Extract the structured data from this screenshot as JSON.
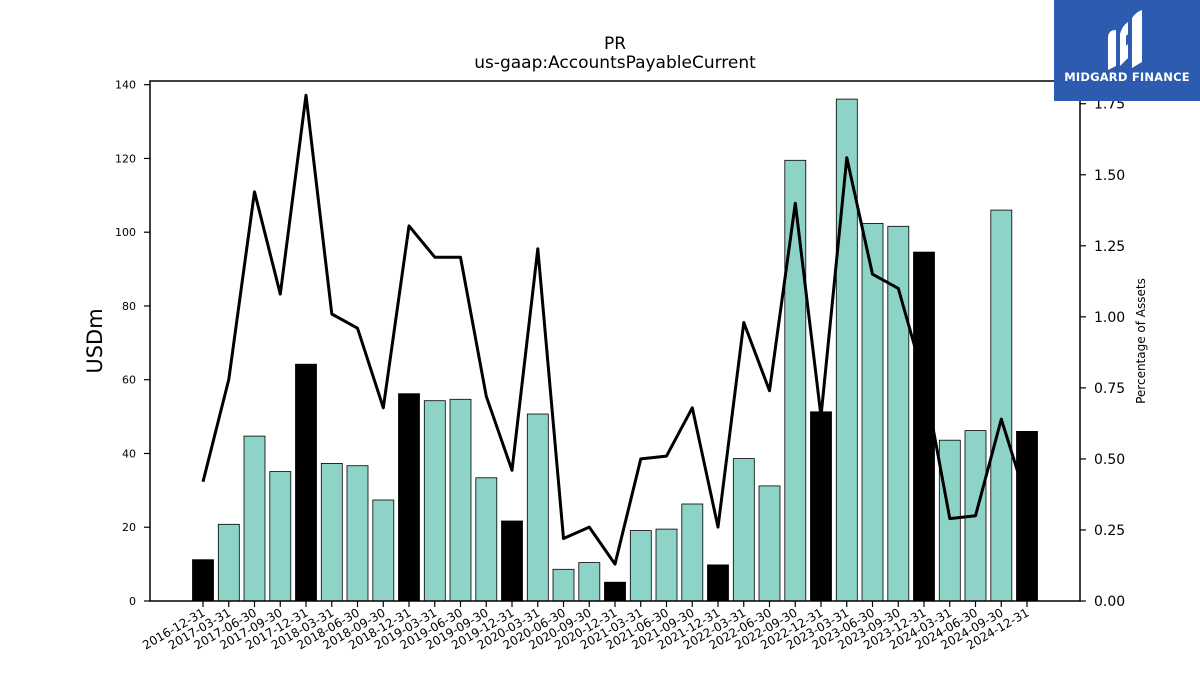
{
  "chart_data": {
    "type": "bar",
    "title": "PR",
    "subtitle": "us-gaap:AccountsPayableCurrent",
    "ylabel": "USDm",
    "y2label": "Percentage of Assets",
    "ylim": [
      0,
      141
    ],
    "y2lim": [
      0,
      1.83
    ],
    "yticks": [
      "0",
      "20",
      "40",
      "60",
      "80",
      "100",
      "120",
      "140"
    ],
    "y2ticks": [
      "0.00",
      "0.25",
      "0.50",
      "0.75",
      "1.00",
      "1.25",
      "1.50",
      "1.75"
    ],
    "categories": [
      "2016-12-31",
      "2017-03-31",
      "2017-06-30",
      "2017-09-30",
      "2017-12-31",
      "2018-03-31",
      "2018-06-30",
      "2018-09-30",
      "2018-12-31",
      "2019-03-31",
      "2019-06-30",
      "2019-09-30",
      "2019-12-31",
      "2020-03-31",
      "2020-06-30",
      "2020-09-30",
      "2020-12-31",
      "2021-03-31",
      "2021-06-30",
      "2021-09-30",
      "2021-12-31",
      "2022-03-31",
      "2022-06-30",
      "2022-09-30",
      "2022-12-31",
      "2023-03-31",
      "2023-06-30",
      "2023-09-30",
      "2023-12-31",
      "2024-03-31",
      "2024-06-30",
      "2024-09-30",
      "2024-12-31"
    ],
    "series": [
      {
        "values": [
          11.2,
          20.8,
          44.7,
          35.1,
          64.2,
          37.3,
          36.7,
          27.4,
          56.2,
          54.3,
          54.7,
          33.4,
          21.7,
          50.7,
          8.6,
          10.4,
          5.1,
          19.1,
          19.5,
          26.3,
          9.8,
          38.6,
          31.2,
          119.5,
          51.3,
          136.1,
          102.4,
          101.6,
          94.6,
          43.6,
          46.2,
          106.0,
          46.0
        ],
        "year_end": [
          true,
          false,
          false,
          false,
          true,
          false,
          false,
          false,
          true,
          false,
          false,
          false,
          true,
          false,
          false,
          false,
          true,
          false,
          false,
          false,
          true,
          false,
          false,
          false,
          true,
          false,
          false,
          false,
          true,
          false,
          false,
          false,
          true
        ]
      },
      {
        "axis": "right",
        "values": [
          0.42,
          0.78,
          1.44,
          1.08,
          1.78,
          1.01,
          0.96,
          0.68,
          1.32,
          1.21,
          1.21,
          0.72,
          0.46,
          1.24,
          0.22,
          0.26,
          0.13,
          0.5,
          0.51,
          0.68,
          0.26,
          0.98,
          0.74,
          1.4,
          0.65,
          1.56,
          1.15,
          1.1,
          0.78,
          0.29,
          0.3,
          0.64,
          0.35
        ]
      }
    ],
    "colors": {
      "quarter_bar": "#8dd3c7",
      "year_end_bar": "#000000",
      "line": "#000000",
      "axis": "#000000"
    }
  },
  "logo": {
    "text": "MIDGARD FINANCE",
    "background": "#2d5bb0",
    "icon": "midgard-logo-mark"
  }
}
